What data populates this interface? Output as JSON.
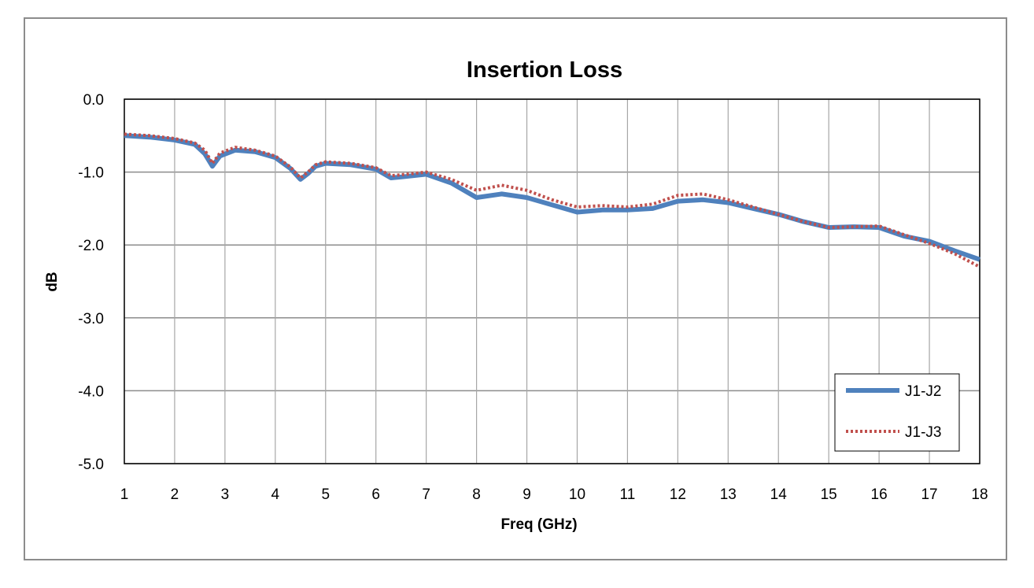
{
  "chart_data": {
    "type": "line",
    "title": "Insertion Loss",
    "xlabel": "Freq (GHz)",
    "ylabel": "dB",
    "xlim": [
      1,
      18
    ],
    "ylim": [
      -5.0,
      0.0
    ],
    "x_ticks": [
      "1",
      "2",
      "3",
      "4",
      "5",
      "6",
      "7",
      "8",
      "9",
      "10",
      "11",
      "12",
      "13",
      "14",
      "15",
      "16",
      "17",
      "18"
    ],
    "y_ticks": [
      "0.0",
      "-1.0",
      "-2.0",
      "-3.0",
      "-4.0",
      "-5.0"
    ],
    "grid": "on",
    "legend_position": "bottom-right",
    "series": [
      {
        "name": "J1-J2",
        "color": "#4f81bd",
        "style": "solid",
        "x": [
          1.0,
          1.5,
          2.0,
          2.4,
          2.6,
          2.75,
          2.9,
          3.2,
          3.6,
          4.0,
          4.3,
          4.5,
          4.65,
          4.8,
          5.0,
          5.5,
          6.0,
          6.3,
          6.6,
          7.0,
          7.5,
          8.0,
          8.5,
          9.0,
          9.5,
          10.0,
          10.5,
          11.0,
          11.5,
          12.0,
          12.5,
          13.0,
          13.5,
          14.0,
          14.5,
          15.0,
          15.5,
          16.0,
          16.5,
          17.0,
          17.5,
          18.0
        ],
        "y": [
          -0.5,
          -0.52,
          -0.56,
          -0.62,
          -0.75,
          -0.92,
          -0.78,
          -0.7,
          -0.72,
          -0.8,
          -0.95,
          -1.1,
          -1.02,
          -0.92,
          -0.88,
          -0.9,
          -0.96,
          -1.08,
          -1.06,
          -1.03,
          -1.15,
          -1.35,
          -1.3,
          -1.35,
          -1.45,
          -1.55,
          -1.52,
          -1.52,
          -1.5,
          -1.4,
          -1.38,
          -1.42,
          -1.5,
          -1.58,
          -1.68,
          -1.76,
          -1.75,
          -1.76,
          -1.88,
          -1.95,
          -2.08,
          -2.2
        ]
      },
      {
        "name": "J1-J3",
        "color": "#c0504d",
        "style": "dotted",
        "x": [
          1.0,
          1.5,
          2.0,
          2.4,
          2.6,
          2.75,
          2.9,
          3.2,
          3.6,
          4.0,
          4.3,
          4.5,
          4.65,
          4.8,
          5.0,
          5.5,
          6.0,
          6.3,
          6.6,
          7.0,
          7.5,
          8.0,
          8.5,
          9.0,
          9.5,
          10.0,
          10.5,
          11.0,
          11.5,
          12.0,
          12.5,
          13.0,
          13.5,
          14.0,
          14.5,
          15.0,
          15.5,
          16.0,
          16.5,
          17.0,
          17.5,
          18.0
        ],
        "y": [
          -0.48,
          -0.5,
          -0.54,
          -0.6,
          -0.7,
          -0.88,
          -0.74,
          -0.66,
          -0.7,
          -0.78,
          -0.93,
          -1.08,
          -1.0,
          -0.9,
          -0.86,
          -0.88,
          -0.94,
          -1.05,
          -1.03,
          -1.0,
          -1.1,
          -1.25,
          -1.18,
          -1.25,
          -1.38,
          -1.48,
          -1.46,
          -1.48,
          -1.44,
          -1.32,
          -1.3,
          -1.38,
          -1.48,
          -1.58,
          -1.68,
          -1.76,
          -1.75,
          -1.74,
          -1.86,
          -1.98,
          -2.12,
          -2.3
        ]
      }
    ]
  }
}
